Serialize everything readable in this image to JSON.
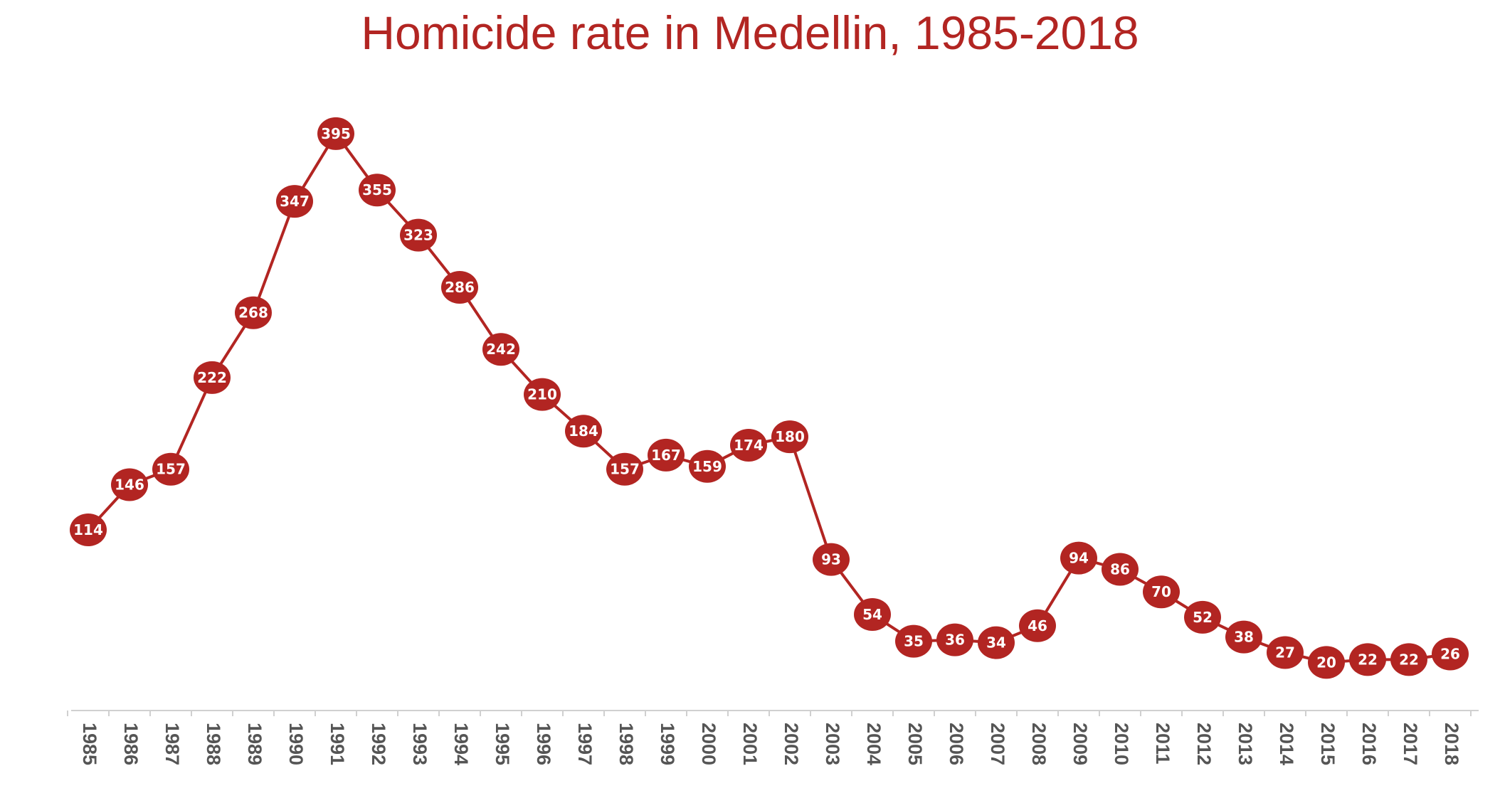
{
  "chart_data": {
    "type": "line",
    "title": "Homicide rate in Medellin, 1985-2018",
    "xlabel": "",
    "ylabel": "",
    "ylim": [
      0,
      400
    ],
    "grid": false,
    "legend": "none",
    "color": "#b22522",
    "axis_color": "#d0d0d0",
    "tick_color": "#555555",
    "label_color": "#ffffff",
    "categories": [
      "1985",
      "1986",
      "1987",
      "1988",
      "1989",
      "1990",
      "1991",
      "1992",
      "1993",
      "1994",
      "1995",
      "1996",
      "1997",
      "1998",
      "1999",
      "2000",
      "2001",
      "2002",
      "2003",
      "2004",
      "2005",
      "2006",
      "2007",
      "2008",
      "2009",
      "2010",
      "2011",
      "2012",
      "2013",
      "2014",
      "2015",
      "2016",
      "2017",
      "2018"
    ],
    "values": [
      114,
      146,
      157,
      222,
      268,
      347,
      395,
      355,
      323,
      286,
      242,
      210,
      184,
      157,
      167,
      159,
      174,
      180,
      93,
      54,
      35,
      36,
      34,
      46,
      94,
      86,
      70,
      52,
      38,
      27,
      20,
      22,
      22,
      26
    ]
  }
}
